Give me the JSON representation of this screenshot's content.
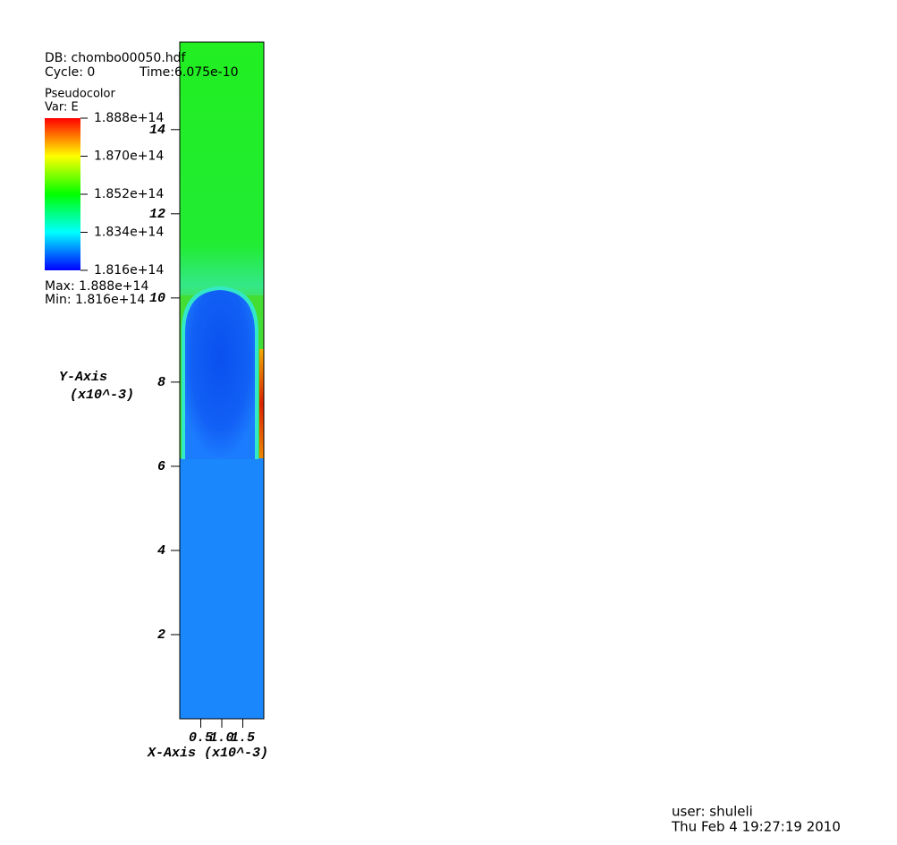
{
  "chart_data": {
    "type": "pseudocolor",
    "db": "DB: chombo00050.hdf",
    "cycle": "Cycle: 0",
    "time": "Time:6.075e-10",
    "plot": "Pseudocolor",
    "var": "Var: E",
    "clim": [
      181600000000000.0,
      188800000000000.0
    ],
    "cticks": [
      {
        "value": 188800000000000.0,
        "label": "1.888e+14"
      },
      {
        "value": 187000000000000.0,
        "label": "1.870e+14"
      },
      {
        "value": 185200000000000.0,
        "label": "1.852e+14"
      },
      {
        "value": 183400000000000.0,
        "label": "1.834e+14"
      },
      {
        "value": 181600000000000.0,
        "label": "1.816e+14"
      }
    ],
    "colormap": [
      "#0000ff",
      "#00ffff",
      "#00ff00",
      "#ffff00",
      "#ff0000"
    ],
    "max_label": "Max:  1.888e+14",
    "min_label": "Min:  1.816e+14",
    "xlabel": "X-Axis (x10^-3)",
    "ylabel": "Y-Axis",
    "yunit": "(x10^-3)",
    "xlim": [
      0,
      2.0
    ],
    "xticks": [
      0.5,
      {
        "value": 1.0,
        "label": "1.0"
      },
      1.5
    ],
    "ylim": [
      0,
      16.08
    ],
    "yticks": [
      2,
      4,
      6,
      8,
      10,
      12,
      14
    ],
    "user": "user: shuleli",
    "date": "Thu Feb  4 19:27:19 2010"
  }
}
